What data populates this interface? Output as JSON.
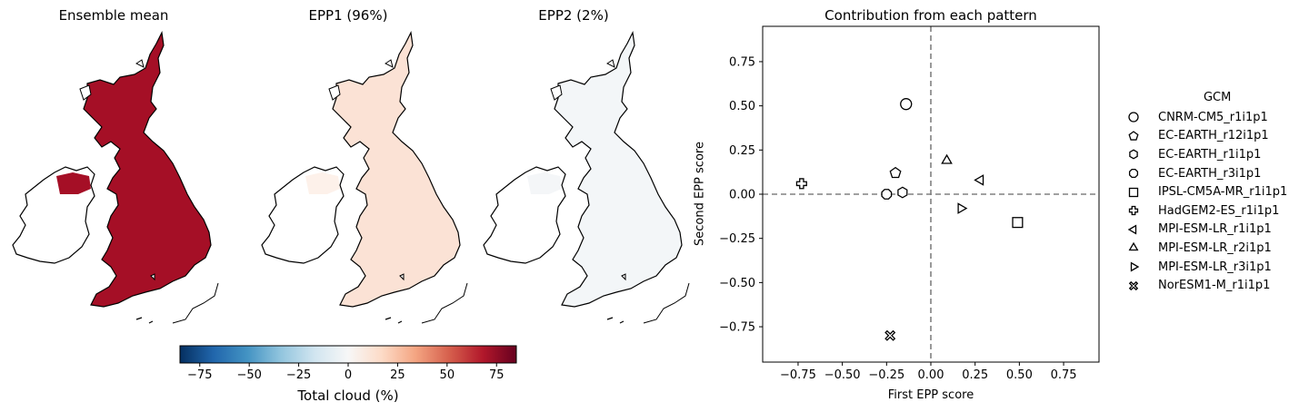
{
  "maps": {
    "titles": [
      "Ensemble mean",
      "EPP1 (96%)",
      "EPP2 (2%)"
    ],
    "fill_colors": [
      "#a50f26",
      "#fbe2d5",
      "#f3f6f8"
    ],
    "ireland_fill_colors": [
      "#a50f26",
      "#fdf1ea",
      "#f4f6f8"
    ],
    "colorbar": {
      "label": "Total cloud (%)",
      "ticks": [
        "−75",
        "−50",
        "−25",
        "0",
        "25",
        "50",
        "75"
      ],
      "tick_values": [
        -75,
        -50,
        -25,
        0,
        25,
        50,
        75
      ],
      "range": [
        -85,
        85
      ],
      "colormap": [
        "#053061",
        "#2166ac",
        "#4393c3",
        "#92c5de",
        "#d1e5f0",
        "#f7f7f7",
        "#fddbc7",
        "#f4a582",
        "#d6604d",
        "#b2182b",
        "#67001f"
      ]
    }
  },
  "chart_data": {
    "type": "scatter",
    "title": "Contribution from each pattern",
    "xlabel": "First EPP score",
    "ylabel": "Second EPP score",
    "xlim": [
      -0.95,
      0.95
    ],
    "ylim": [
      -0.95,
      0.95
    ],
    "xticks": [
      "−0.75",
      "−0.50",
      "−0.25",
      "0.00",
      "0.25",
      "0.50",
      "0.75"
    ],
    "yticks": [
      "−0.75",
      "−0.50",
      "−0.25",
      "0.00",
      "0.25",
      "0.50",
      "0.75"
    ],
    "tick_values": [
      -0.75,
      -0.5,
      -0.25,
      0,
      0.25,
      0.5,
      0.75
    ],
    "reference_lines": {
      "x": 0,
      "y": 0,
      "style": "dashed",
      "color": "#808080"
    },
    "grid": false,
    "legend_title": "GCM",
    "legend_position": "right",
    "series": [
      {
        "name": "CNRM-CM5_r1i1p1",
        "marker": "circle",
        "x": -0.14,
        "y": 0.51
      },
      {
        "name": "EC-EARTH_r12i1p1",
        "marker": "pentagon",
        "x": -0.2,
        "y": 0.12
      },
      {
        "name": "EC-EARTH_r1i1p1",
        "marker": "hexagon",
        "x": -0.16,
        "y": 0.01
      },
      {
        "name": "EC-EARTH_r3i1p1",
        "marker": "octagon",
        "x": -0.25,
        "y": 0.0
      },
      {
        "name": "IPSL-CM5A-MR_r1i1p1",
        "marker": "square",
        "x": 0.49,
        "y": -0.16
      },
      {
        "name": "HadGEM2-ES_r1i1p1",
        "marker": "plus",
        "x": -0.73,
        "y": 0.06
      },
      {
        "name": "MPI-ESM-LR_r1i1p1",
        "marker": "triangle-left",
        "x": 0.28,
        "y": 0.08
      },
      {
        "name": "MPI-ESM-LR_r2i1p1",
        "marker": "triangle-up",
        "x": 0.09,
        "y": 0.19
      },
      {
        "name": "MPI-ESM-LR_r3i1p1",
        "marker": "triangle-right",
        "x": 0.17,
        "y": -0.08
      },
      {
        "name": "NorESM1-M_r1i1p1",
        "marker": "x-filled",
        "x": -0.23,
        "y": -0.8
      }
    ]
  }
}
